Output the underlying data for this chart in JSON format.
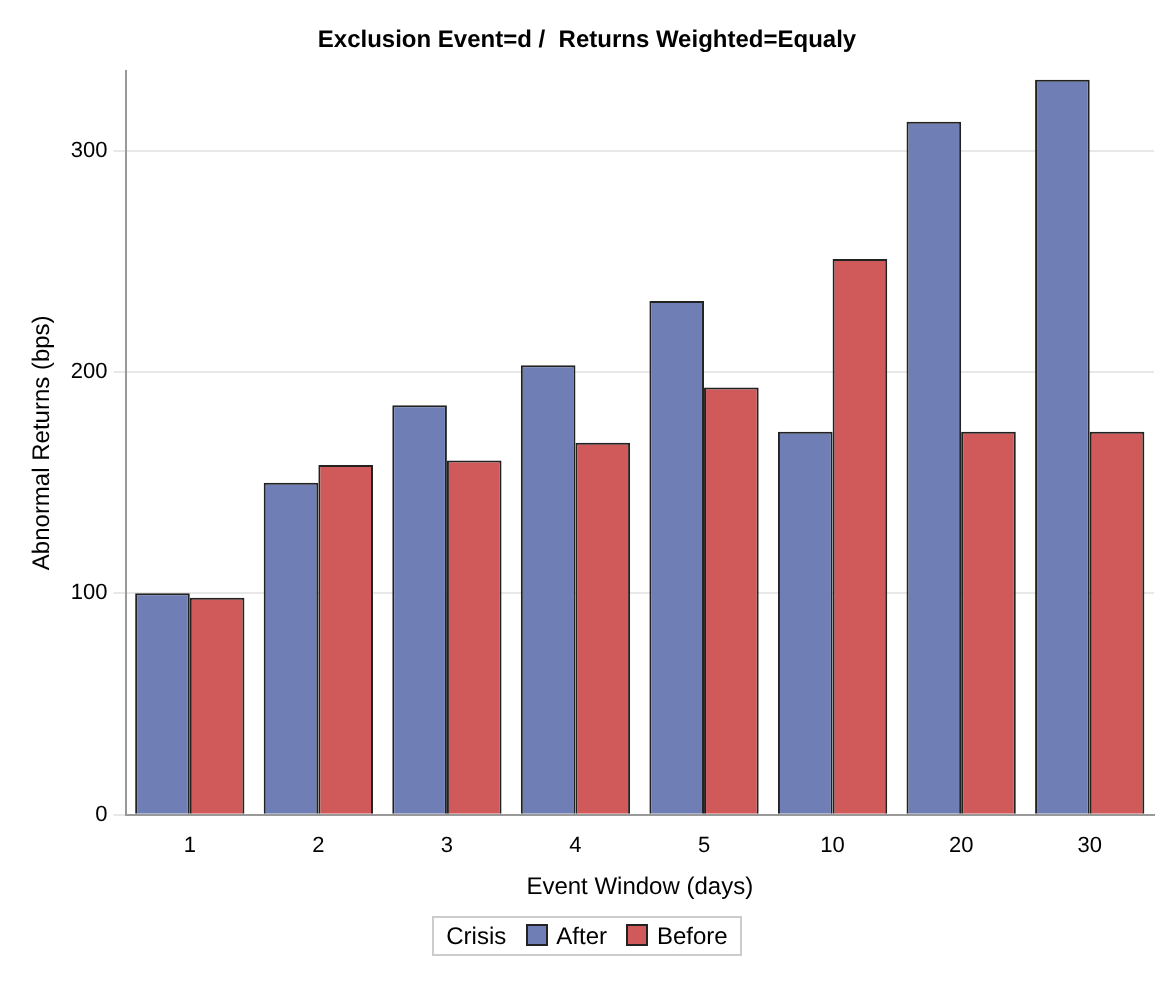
{
  "chart_data": {
    "type": "bar",
    "title": "Exclusion Event=d /  Returns Weighted=Equaly",
    "xlabel": "Event Window (days)",
    "ylabel": "Abnormal Returns (bps)",
    "legend_title": "Crisis",
    "categories": [
      "1",
      "2",
      "3",
      "4",
      "5",
      "10",
      "20",
      "30"
    ],
    "series": [
      {
        "name": "After",
        "color": "#6f7fb5",
        "values": [
          100,
          150,
          185,
          203,
          232,
          173,
          313,
          332
        ]
      },
      {
        "name": "Before",
        "color": "#d05a5a",
        "values": [
          98,
          158,
          160,
          168,
          193,
          251,
          173,
          173
        ]
      }
    ],
    "ylim": [
      0,
      336
    ],
    "yticks": [
      0,
      100,
      200,
      300
    ],
    "grid": "y",
    "legend": "bottom"
  }
}
